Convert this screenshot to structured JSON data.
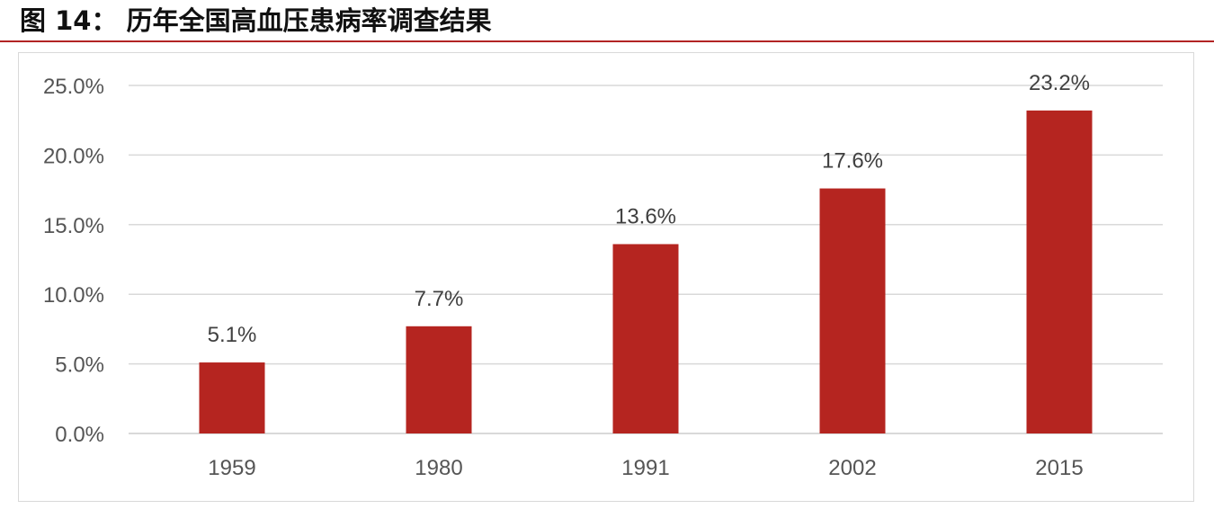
{
  "header": {
    "figure_label": "图",
    "figure_number": "14：",
    "title": "历年全国高血压患病率调查结果"
  },
  "colors": {
    "bar": "#b52520",
    "accent_rule": "#b22424",
    "gridline": "#d9d9d9",
    "axis_text": "#555555"
  },
  "chart_data": {
    "type": "bar",
    "title": "历年全国高血压患病率调查结果",
    "categories": [
      "1959",
      "1980",
      "1991",
      "2002",
      "2015"
    ],
    "values": [
      5.1,
      7.7,
      13.6,
      17.6,
      23.2
    ],
    "value_labels": [
      "5.1%",
      "7.7%",
      "13.6%",
      "17.6%",
      "23.2%"
    ],
    "yticks": [
      0,
      5,
      10,
      15,
      20,
      25
    ],
    "ytick_labels": [
      "0.0%",
      "5.0%",
      "10.0%",
      "15.0%",
      "20.0%",
      "25.0%"
    ],
    "ylim": [
      0,
      25
    ],
    "xlabel": "",
    "ylabel": "",
    "grid": true,
    "legend": "none"
  }
}
